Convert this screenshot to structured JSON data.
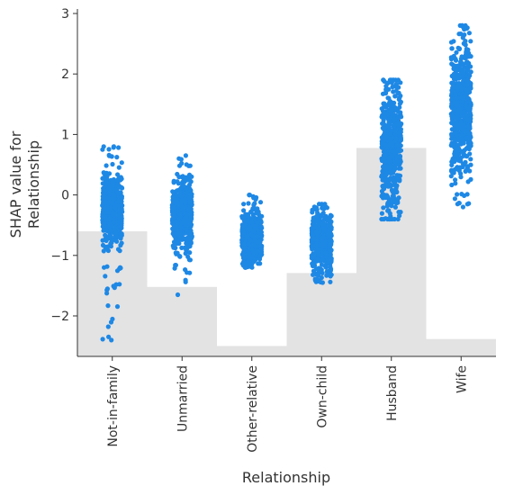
{
  "chart_data": {
    "type": "scatter",
    "subtype": "shap-dependence-strip",
    "xlabel": "Relationship",
    "ylabel_lines": [
      "SHAP value for",
      "Relationship"
    ],
    "ylim": [
      -2.7,
      3.1
    ],
    "yticks": [
      -2,
      -1,
      0,
      1,
      2,
      3
    ],
    "ytick_labels": [
      "−2",
      "−1",
      "0",
      "1",
      "2",
      "3"
    ],
    "categories": [
      "Not-in-family",
      "Unmarried",
      "Other-relative",
      "Own-child",
      "Husband",
      "Wife"
    ],
    "point_color": "#1e88e5",
    "histogram_color": "#e3e3e3",
    "histogram_relative_heights": [
      0.36,
      0.2,
      0.03,
      0.24,
      0.6,
      0.05
    ],
    "strips": [
      {
        "category": "Not-in-family",
        "core": [
          -0.8,
          0.35
        ],
        "min": -2.4,
        "max": 0.8
      },
      {
        "category": "Unmarried",
        "core": [
          -0.85,
          0.2
        ],
        "min": -1.65,
        "max": 0.65
      },
      {
        "category": "Other-relative",
        "core": [
          -1.1,
          -0.3
        ],
        "min": -1.2,
        "max": 0.0
      },
      {
        "category": "Own-child",
        "core": [
          -1.2,
          -0.35
        ],
        "min": -1.45,
        "max": -0.15
      },
      {
        "category": "Husband",
        "core": [
          -0.2,
          1.8
        ],
        "min": -0.4,
        "max": 1.9
      },
      {
        "category": "Wife",
        "core": [
          0.3,
          2.5
        ],
        "min": -0.2,
        "max": 2.8
      }
    ]
  }
}
